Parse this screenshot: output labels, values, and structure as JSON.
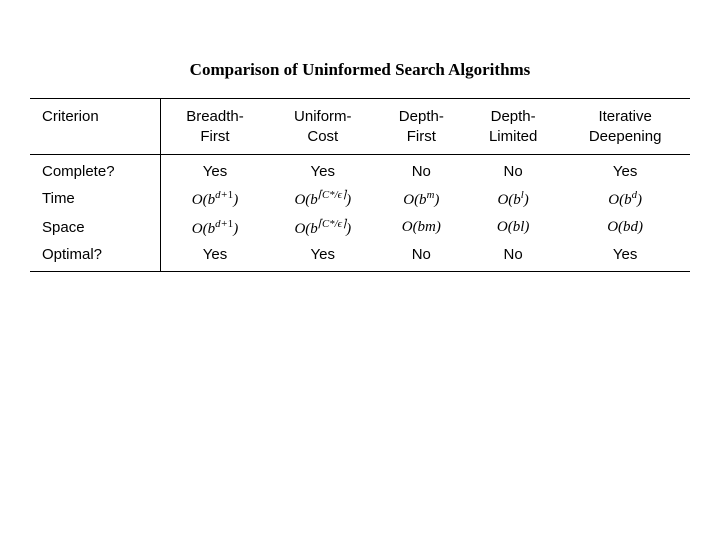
{
  "title": "Comparison of Uninformed Search Algorithms",
  "table": {
    "type": "table",
    "columns": [
      {
        "label": "Criterion",
        "align": "left",
        "width": 110,
        "border_right": true
      },
      {
        "label": "Breadth-First",
        "align": "center"
      },
      {
        "label": "Uniform-Cost",
        "align": "center"
      },
      {
        "label": "Depth-First",
        "align": "center"
      },
      {
        "label": "Depth-Limited",
        "align": "center"
      },
      {
        "label": "Iterative Deepening",
        "align": "center"
      }
    ],
    "header_two_line": {
      "c0": "Criterion",
      "c1a": "Breadth-",
      "c1b": "First",
      "c2a": "Uniform-",
      "c2b": "Cost",
      "c3a": "Depth-",
      "c3b": "First",
      "c4a": "Depth-",
      "c4b": "Limited",
      "c5a": "Iterative",
      "c5b": "Deepening"
    },
    "rows": [
      {
        "criterion": "Complete?",
        "cells": [
          "Yes",
          "Yes",
          "No",
          "No",
          "Yes"
        ],
        "math": false
      },
      {
        "criterion": "Time",
        "cells": [
          "O(b^{d+1})",
          "O(b^{⌈C*/ε⌉})",
          "O(b^m)",
          "O(b^l)",
          "O(b^d)"
        ],
        "math": true
      },
      {
        "criterion": "Space",
        "cells": [
          "O(b^{d+1})",
          "O(b^{⌈C*/ε⌉})",
          "O(bm)",
          "O(bl)",
          "O(bd)"
        ],
        "math": true
      },
      {
        "criterion": "Optimal?",
        "cells": [
          "Yes",
          "Yes",
          "No",
          "No",
          "Yes"
        ],
        "math": false
      }
    ],
    "border_color": "#000000",
    "background_color": "#ffffff",
    "header_fontsize": 15,
    "body_fontsize": 15,
    "title_fontsize": 17,
    "title_weight": "bold"
  },
  "math_html": {
    "r1c1": "O(b<sup>d+<span class='upn'>1</span></sup>)",
    "r1c2": "O(b<sup>⌈C*/ϵ⌉</sup>)",
    "r1c3": "O(b<sup>m</sup>)",
    "r1c4": "O(b<sup>l</sup>)",
    "r1c5": "O(b<sup>d</sup>)",
    "r2c1": "O(b<sup>d+<span class='upn'>1</span></sup>)",
    "r2c2": "O(b<sup>⌈C*/ϵ⌉</sup>)",
    "r2c3": "O(bm)",
    "r2c4": "O(bl)",
    "r2c5": "O(bd)"
  }
}
